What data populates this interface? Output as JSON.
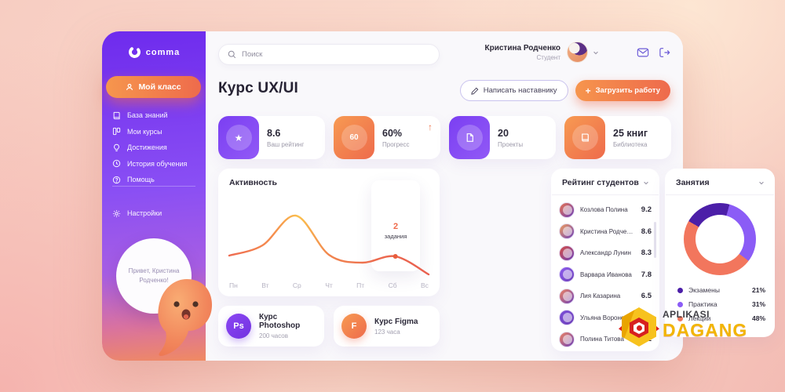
{
  "app": {
    "logo_text": "comma",
    "logo_icon": "comma-icon"
  },
  "sidebar": {
    "my_class": {
      "label": "Мой класс",
      "icon": "user-icon"
    },
    "items": [
      {
        "label": "База знаний",
        "icon": "book-icon"
      },
      {
        "label": "Мои курсы",
        "icon": "courses-icon"
      },
      {
        "label": "Достижения",
        "icon": "bulb-icon"
      },
      {
        "label": "История обучения",
        "icon": "clock-icon"
      },
      {
        "label": "Помощь",
        "icon": "help-icon"
      }
    ],
    "settings": {
      "label": "Настройки",
      "icon": "gear-icon"
    },
    "greeting": "Привет, Кристина Родченко!"
  },
  "header": {
    "search_placeholder": "Поиск",
    "user": {
      "name": "Кристина Родченко",
      "role": "Студент"
    },
    "icons": [
      "mail-icon",
      "logout-icon"
    ]
  },
  "page": {
    "title": "Курс UX/UI",
    "write_mentor_button": "Написать наставнику",
    "upload_work_button": "Загрузить работу"
  },
  "stats": [
    {
      "value": "8.6",
      "label": "Ваш рейтинг",
      "icon": "star-icon",
      "accent": "#7b3ff2"
    },
    {
      "value": "60%",
      "label": "Прогресс",
      "icon": "progress-icon",
      "icon_text": "60",
      "accent": "#ee6b4c",
      "trend": "↑"
    },
    {
      "value": "20",
      "label": "Проекты",
      "icon": "document-icon",
      "accent": "#7b3ff2"
    },
    {
      "value": "25 книг",
      "label": "Библиотека",
      "icon": "book-icon",
      "accent": "#ee6b4c"
    }
  ],
  "rating": {
    "title": "Рейтинг студентов",
    "students": [
      {
        "name": "Козлова Полина",
        "score": "9.2",
        "avatar": "#e8744f"
      },
      {
        "name": "Кристина Родченко",
        "score": "8.6",
        "avatar": "#f2a05c"
      },
      {
        "name": "Александр Лунин",
        "score": "8.3",
        "avatar": "#d84f43"
      },
      {
        "name": "Варвара Иванова",
        "score": "7.8",
        "avatar": "#8d5cf0"
      },
      {
        "name": "Лия Казарина",
        "score": "6.5",
        "avatar": "#ef8560"
      },
      {
        "name": "Ульяна Воронова",
        "score": "6.4",
        "avatar": "#7c4fd8"
      },
      {
        "name": "Полина Титова",
        "score": "5.2",
        "avatar": "#ef8560"
      }
    ]
  },
  "courses": [
    {
      "name": "Курс Photoshop",
      "hours": "200 часов",
      "badge": "Ps",
      "color": "#8b46f3"
    },
    {
      "name": "Курс Figma",
      "hours": "123 часа",
      "badge": "F",
      "color": "#ee6b4c"
    }
  ],
  "watermark": {
    "line1": "APLIKASI",
    "line2": "DAGANG"
  },
  "chart_data": [
    {
      "type": "line",
      "title": "Активность",
      "x": [
        "Пн",
        "Вт",
        "Ср",
        "Чт",
        "Пт",
        "Сб",
        "Вс"
      ],
      "values": [
        2.9,
        4.2,
        8.0,
        3.0,
        2.0,
        2.8,
        0.5
      ],
      "ylim": [
        0,
        10
      ],
      "grid": false,
      "line_colors": [
        "#ee6b51",
        "#fbc14e"
      ],
      "annotation": {
        "x": "Сб",
        "index": 5,
        "value": "2",
        "label": "задания"
      }
    },
    {
      "type": "pie",
      "title": "Занятия",
      "labels": [
        "Экзамены",
        "Практика",
        "Лекции"
      ],
      "values": [
        21,
        31,
        48
      ],
      "display_values": [
        "21%",
        "31%",
        "48%"
      ],
      "colors": [
        "#4c1fa8",
        "#8b5cf6",
        "#f2765d"
      ],
      "legend_position": "bottom",
      "donut": true
    }
  ]
}
